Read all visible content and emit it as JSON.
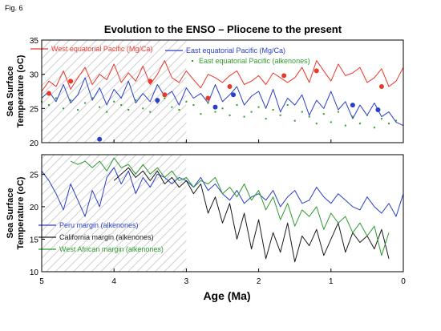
{
  "figure_label": "Fig. 6",
  "title": "Evolution to the ENSO – Pliocene to the present",
  "xlabel": "Age (Ma)",
  "colors": {
    "red": "#e8392b",
    "blue": "#2a3fc8",
    "green": "#2f9a2f",
    "black": "#1a1a1a",
    "hatch": "#c8c8c8"
  },
  "chart_data": [
    {
      "type": "line",
      "panel": "top",
      "ylabel": "Sea Surface Temperature (oC)",
      "xlim": [
        5,
        0
      ],
      "ylim": [
        20,
        35
      ],
      "xticks": [
        "5",
        "4",
        "3",
        "2",
        "1",
        "0"
      ],
      "yticks": [
        "20",
        "25",
        "30",
        "35"
      ],
      "shaded_region": [
        5,
        3
      ],
      "series": [
        {
          "name": "West equatorial Pacific (Mg/Ca)",
          "color": "#e8392b",
          "style": "line",
          "x": [
            5.0,
            4.9,
            4.8,
            4.7,
            4.6,
            4.5,
            4.4,
            4.3,
            4.2,
            4.1,
            4.0,
            3.9,
            3.8,
            3.7,
            3.6,
            3.5,
            3.4,
            3.3,
            3.2,
            3.1,
            3.0,
            2.9,
            2.8,
            2.7,
            2.6,
            2.5,
            2.4,
            2.3,
            2.2,
            2.1,
            2.0,
            1.9,
            1.8,
            1.7,
            1.6,
            1.5,
            1.4,
            1.3,
            1.2,
            1.1,
            1.0,
            0.9,
            0.8,
            0.7,
            0.6,
            0.5,
            0.4,
            0.3,
            0.2,
            0.1,
            0.0
          ],
          "values": [
            27.5,
            29.0,
            28.2,
            30.5,
            27.8,
            29.5,
            31.0,
            28.5,
            30.0,
            29.2,
            31.5,
            28.8,
            30.2,
            29.0,
            31.2,
            28.5,
            30.0,
            32.0,
            29.5,
            28.8,
            30.5,
            29.2,
            28.0,
            30.0,
            29.5,
            28.8,
            29.8,
            30.5,
            28.5,
            29.0,
            29.8,
            28.5,
            30.2,
            29.5,
            28.8,
            29.5,
            31.0,
            28.8,
            32.0,
            30.5,
            29.0,
            31.5,
            29.8,
            30.2,
            31.0,
            28.8,
            29.5,
            30.8,
            28.2,
            29.0,
            31.0
          ]
        },
        {
          "name": "East equatorial Pacific (Mg/Ca)",
          "color": "#2a3fc8",
          "style": "line",
          "x": [
            5.0,
            4.9,
            4.8,
            4.7,
            4.6,
            4.5,
            4.4,
            4.3,
            4.2,
            4.1,
            4.0,
            3.9,
            3.8,
            3.7,
            3.6,
            3.5,
            3.4,
            3.3,
            3.2,
            3.1,
            3.0,
            2.9,
            2.8,
            2.7,
            2.6,
            2.5,
            2.4,
            2.3,
            2.2,
            2.1,
            2.0,
            1.9,
            1.8,
            1.7,
            1.6,
            1.5,
            1.4,
            1.3,
            1.2,
            1.1,
            1.0,
            0.9,
            0.8,
            0.7,
            0.6,
            0.5,
            0.4,
            0.3,
            0.2,
            0.1,
            0.0
          ],
          "values": [
            26.5,
            27.5,
            26.0,
            28.5,
            25.8,
            27.0,
            29.5,
            26.2,
            28.0,
            25.5,
            27.8,
            26.5,
            29.0,
            25.8,
            27.2,
            26.0,
            28.5,
            26.8,
            27.5,
            25.5,
            28.0,
            26.5,
            27.2,
            25.8,
            28.5,
            26.0,
            27.0,
            28.2,
            25.5,
            26.8,
            27.5,
            25.0,
            27.8,
            24.5,
            26.5,
            25.5,
            27.0,
            24.0,
            26.2,
            25.0,
            27.5,
            24.8,
            26.0,
            23.5,
            25.5,
            24.0,
            25.8,
            23.8,
            24.5,
            23.0,
            22.5
          ]
        },
        {
          "name": "East equatorial Pacific (alkenones)",
          "color": "#2f9a2f",
          "style": "dots",
          "x": [
            5.0,
            4.9,
            4.8,
            4.7,
            4.6,
            4.5,
            4.4,
            4.3,
            4.2,
            4.1,
            4.0,
            3.9,
            3.8,
            3.7,
            3.6,
            3.5,
            3.4,
            3.3,
            3.2,
            3.1,
            3.0,
            2.9,
            2.8,
            2.7,
            2.6,
            2.5,
            2.4,
            2.3,
            2.2,
            2.1,
            2.0,
            1.9,
            1.8,
            1.7,
            1.6,
            1.5,
            1.4,
            1.3,
            1.2,
            1.1,
            1.0,
            0.9,
            0.8,
            0.7,
            0.6,
            0.5,
            0.4,
            0.3,
            0.2,
            0.1
          ],
          "values": [
            26.0,
            25.5,
            26.5,
            25.0,
            26.2,
            24.8,
            25.8,
            26.5,
            25.2,
            24.5,
            26.0,
            25.5,
            24.8,
            26.2,
            25.0,
            24.5,
            25.8,
            26.5,
            25.2,
            24.8,
            26.0,
            25.5,
            24.2,
            25.8,
            24.5,
            25.0,
            24.0,
            25.5,
            23.8,
            24.5,
            25.2,
            23.5,
            24.8,
            24.0,
            25.5,
            23.2,
            24.5,
            23.8,
            22.8,
            24.2,
            23.0,
            24.5,
            22.5,
            23.8,
            22.8,
            24.0,
            22.2,
            23.5,
            22.8,
            23.2
          ]
        },
        {
          "name": "",
          "color": "#e8392b",
          "style": "markers",
          "x": [
            4.9,
            4.6,
            3.5,
            3.3,
            2.7,
            2.4,
            1.65,
            1.2,
            0.3
          ],
          "values": [
            27.2,
            29.0,
            29.0,
            27.0,
            26.5,
            28.2,
            29.8,
            30.5,
            28.2
          ]
        },
        {
          "name": "",
          "color": "#2a3fc8",
          "style": "markers",
          "x": [
            4.2,
            3.4,
            2.6,
            2.35,
            0.7,
            0.35
          ],
          "values": [
            20.5,
            26.2,
            25.2,
            27.0,
            25.5,
            24.8
          ]
        }
      ]
    },
    {
      "type": "line",
      "panel": "bottom",
      "ylabel": "Sea Surface Temperature (oC)",
      "xlim": [
        5,
        0
      ],
      "ylim": [
        10,
        28
      ],
      "xticks": [
        "5",
        "4",
        "3",
        "2",
        "1",
        "0"
      ],
      "yticks": [
        "10",
        "15",
        "20",
        "25"
      ],
      "shaded_region": [
        5,
        3
      ],
      "series": [
        {
          "name": "Peru margin (alkenones)",
          "color": "#2a3fc8",
          "style": "line",
          "x": [
            5.0,
            4.9,
            4.8,
            4.7,
            4.6,
            4.5,
            4.4,
            4.3,
            4.2,
            4.1,
            4.0,
            3.9,
            3.8,
            3.7,
            3.6,
            3.5,
            3.4,
            3.3,
            3.2,
            3.1,
            3.0,
            2.9,
            2.8,
            2.7,
            2.6,
            2.5,
            2.4,
            2.3,
            2.2,
            2.1,
            2.0,
            1.9,
            1.8,
            1.7,
            1.6,
            1.5,
            1.4,
            1.3,
            1.2,
            1.1,
            1.0,
            0.9,
            0.8,
            0.7,
            0.6,
            0.5,
            0.4,
            0.3,
            0.2,
            0.1,
            0.0
          ],
          "values": [
            25.5,
            24.0,
            22.0,
            19.5,
            23.5,
            21.0,
            18.5,
            22.5,
            20.0,
            24.5,
            26.0,
            23.5,
            25.5,
            22.0,
            24.5,
            23.0,
            25.0,
            24.5,
            23.5,
            24.5,
            24.0,
            23.0,
            24.5,
            22.5,
            23.5,
            22.0,
            21.0,
            22.5,
            20.5,
            21.5,
            22.0,
            21.0,
            22.5,
            20.0,
            21.5,
            22.5,
            20.5,
            21.0,
            23.0,
            21.5,
            20.5,
            22.0,
            21.0,
            20.0,
            19.5,
            21.5,
            20.0,
            19.0,
            20.5,
            18.5,
            22.0
          ]
        },
        {
          "name": "California margin (alkenones)",
          "color": "#1a1a1a",
          "style": "line",
          "x": [
            4.0,
            3.9,
            3.8,
            3.7,
            3.6,
            3.5,
            3.4,
            3.3,
            3.2,
            3.1,
            3.0,
            2.9,
            2.8,
            2.7,
            2.6,
            2.5,
            2.4,
            2.3,
            2.2,
            2.1,
            2.0,
            1.9,
            1.8,
            1.7,
            1.6,
            1.5,
            1.4,
            1.3,
            1.2,
            1.1,
            1.0,
            0.9,
            0.8,
            0.7,
            0.6,
            0.5,
            0.4,
            0.3,
            0.2
          ],
          "values": [
            24.0,
            25.0,
            26.0,
            24.5,
            25.5,
            24.0,
            25.5,
            23.5,
            24.5,
            23.0,
            24.0,
            22.0,
            23.5,
            19.0,
            21.5,
            17.5,
            20.5,
            15.0,
            19.0,
            13.5,
            18.0,
            12.0,
            16.0,
            13.0,
            17.5,
            11.5,
            15.5,
            14.0,
            16.5,
            12.5,
            15.0,
            17.5,
            13.0,
            16.0,
            14.5,
            15.5,
            13.5,
            16.5,
            12.0
          ]
        },
        {
          "name": "West African margin (alkenones)",
          "color": "#2f9a2f",
          "style": "line",
          "x": [
            4.6,
            4.5,
            4.4,
            4.3,
            4.2,
            4.1,
            4.0,
            3.9,
            3.8,
            3.7,
            3.6,
            3.5,
            3.4,
            3.3,
            3.2,
            3.1,
            3.0,
            2.9,
            2.8,
            2.7,
            2.6,
            2.5,
            2.4,
            2.3,
            2.2,
            2.1,
            2.0,
            1.9,
            1.8,
            1.7,
            1.6,
            1.5,
            1.4,
            1.3,
            1.2,
            1.1,
            1.0,
            0.9,
            0.8,
            0.7,
            0.6,
            0.5,
            0.4,
            0.3,
            0.2
          ],
          "values": [
            27.0,
            26.5,
            27.0,
            26.0,
            27.0,
            25.5,
            27.5,
            26.0,
            26.5,
            25.0,
            26.5,
            25.0,
            26.0,
            24.5,
            25.5,
            24.0,
            24.5,
            23.0,
            24.0,
            23.5,
            24.5,
            22.0,
            23.0,
            21.5,
            23.5,
            21.0,
            22.5,
            19.5,
            21.5,
            18.0,
            20.5,
            17.0,
            19.5,
            18.5,
            20.0,
            16.5,
            19.0,
            17.5,
            18.5,
            16.0,
            17.5,
            15.5,
            17.0,
            12.5,
            16.0
          ]
        }
      ]
    }
  ]
}
